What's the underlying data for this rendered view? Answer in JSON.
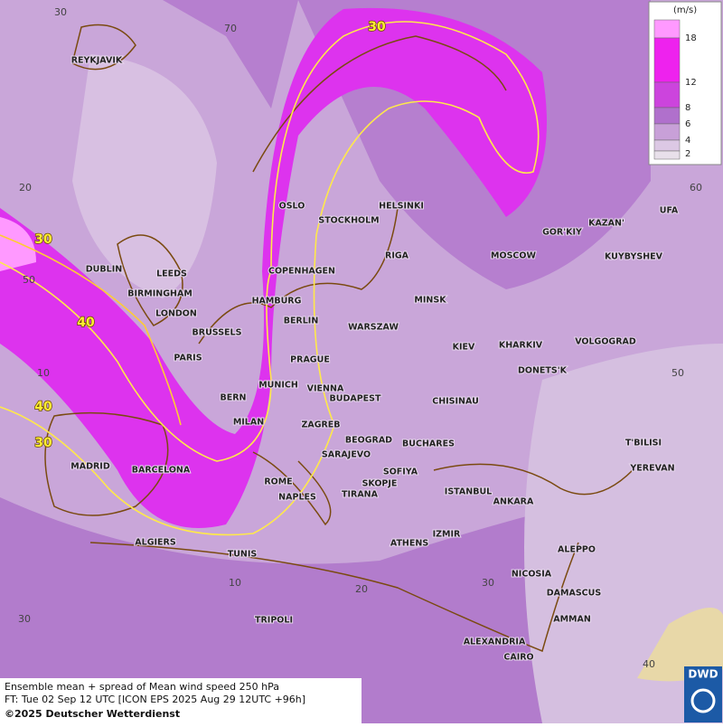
{
  "graticule_labels": [
    "30",
    "70",
    "20",
    "50",
    "10",
    "60",
    "50",
    "10",
    "20",
    "30",
    "40",
    "30"
  ],
  "contour_labels": [
    "30",
    "30",
    "40",
    "40",
    "30"
  ],
  "cities": [
    "REYKJAVIK",
    "OSLO",
    "STOCKHOLM",
    "HELSINKI",
    "KAZAN'",
    "UFA",
    "GOR'KIY",
    "MOSCOW",
    "KUYBYSHEV",
    "RIGA",
    "DUBLIN",
    "LEEDS",
    "COPENHAGEN",
    "BIRMINGHAM",
    "HAMBURG",
    "MINSK",
    "LONDON",
    "BERLIN",
    "WARSZAW",
    "BRUSSELS",
    "VOLGOGRAD",
    "KIEV",
    "KHARKIV",
    "PARIS",
    "PRAGUE",
    "DONETS'K",
    "MUNICH",
    "VIENNA",
    "BERN",
    "BUDAPEST",
    "CHISINAU",
    "ZAGREB",
    "MILAN",
    "BEOGRAD",
    "BUCHARES",
    "T'BILISI",
    "SARAJEVO",
    "YEREVAN",
    "MADRID",
    "BARCELONA",
    "SOFIYA",
    "ROME",
    "SKOPJE",
    "TIRANA",
    "ISTANBUL",
    "NAPLES",
    "ANKARA",
    "IZMIR",
    "ALGIERS",
    "ATHENS",
    "ALEPPO",
    "TUNIS",
    "NICOSIA",
    "DAMASCUS",
    "AMMAN",
    "TRIPOLI",
    "ALEXANDRIA",
    "CAIRO"
  ],
  "legend": {
    "unit": "(m/s)",
    "labels": [
      "18",
      "12",
      "8",
      "6",
      "4",
      "2"
    ]
  },
  "caption": [
    "Ensemble mean + spread of Mean wind speed 250 hPa",
    "FT: Tue 02 Sep 12 UTC [ICON EPS 2025 Aug 29 12UTC +96h]",
    "©2025 Deutscher Wetterdienst"
  ],
  "logo": "DWD"
}
